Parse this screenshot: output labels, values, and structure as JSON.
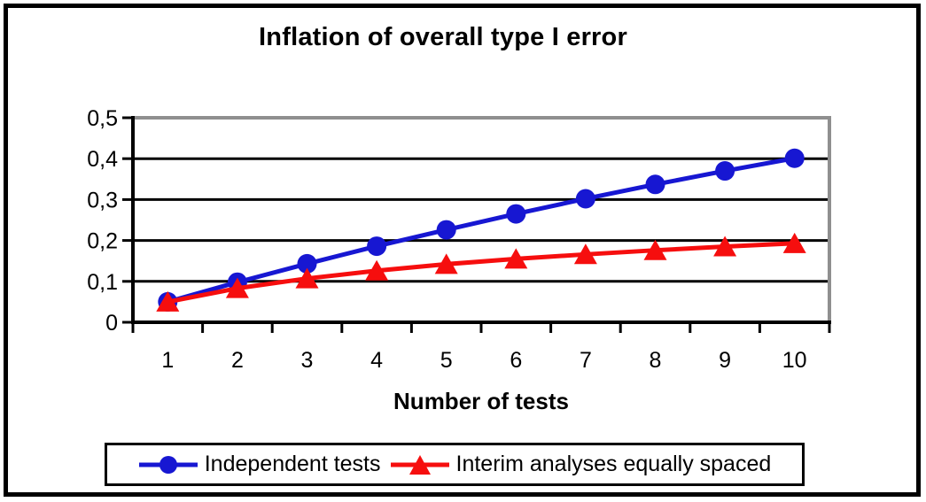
{
  "chart": {
    "title": "Inflation of overall type I error",
    "x_axis_title": "Number of tests",
    "legend": [
      {
        "label": "Independent tests",
        "color": "#1717d2",
        "marker": "circle"
      },
      {
        "label": "Interim analyses equally spaced",
        "color": "#f60e0e",
        "marker": "triangle"
      }
    ]
  },
  "chart_data": {
    "type": "line",
    "title": "Inflation of overall type I error",
    "xlabel": "Number of tests",
    "ylabel": "",
    "categories": [
      "1",
      "2",
      "3",
      "4",
      "5",
      "6",
      "7",
      "8",
      "9",
      "10"
    ],
    "series": [
      {
        "name": "Independent tests",
        "color": "#1717d2",
        "marker": "circle",
        "values": [
          0.05,
          0.098,
          0.143,
          0.186,
          0.226,
          0.265,
          0.302,
          0.337,
          0.37,
          0.401
        ]
      },
      {
        "name": "Interim analyses equally spaced",
        "color": "#f60e0e",
        "marker": "triangle",
        "values": [
          0.05,
          0.083,
          0.107,
          0.126,
          0.142,
          0.155,
          0.166,
          0.176,
          0.185,
          0.193
        ]
      }
    ],
    "ylim": [
      0,
      0.5
    ],
    "ytick_values": [
      0,
      0.1,
      0.2,
      0.3,
      0.4,
      0.5
    ],
    "ytick_labels": [
      "0",
      "0,1",
      "0,2",
      "0,3",
      "0,4",
      "0,5"
    ],
    "decimal_separator": ",",
    "grid": true,
    "gridline_color": "#000000",
    "plot_border_color": "#8f8f8f",
    "legend_position": "bottom"
  }
}
